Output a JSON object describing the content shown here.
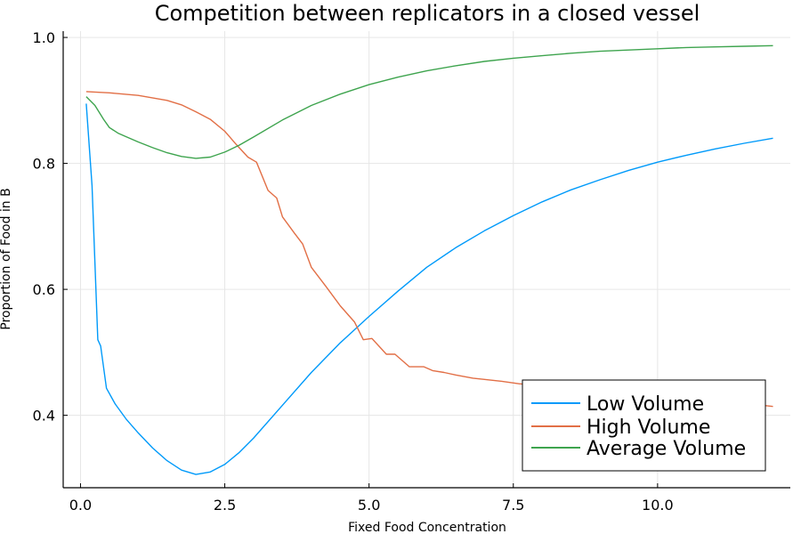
{
  "chart_data": {
    "type": "line",
    "title": "Competition between replicators in a closed vessel",
    "xlabel": "Fixed Food Concentration",
    "ylabel": "Proportion of Food in B",
    "xlim": [
      -0.3,
      12.3
    ],
    "ylim": [
      0.285,
      1.01
    ],
    "xticks": [
      0,
      2.5,
      5,
      7.5,
      10
    ],
    "xtick_labels": [
      "0.0",
      "2.5",
      "5.0",
      "7.5",
      "10.0"
    ],
    "yticks": [
      0.4,
      0.6,
      0.8,
      1.0
    ],
    "ytick_labels": [
      "0.4",
      "0.6",
      "0.8",
      "1.0"
    ],
    "grid": true,
    "legend": "bottom-right",
    "series": [
      {
        "name": "Low Volume",
        "color": "#009AFA",
        "x": [
          0.1,
          0.2,
          0.3,
          0.35,
          0.45,
          0.6,
          0.8,
          1.0,
          1.25,
          1.5,
          1.75,
          2.0,
          2.25,
          2.5,
          2.75,
          3.0,
          3.5,
          4.0,
          4.5,
          5.0,
          5.5,
          6.0,
          6.5,
          7.0,
          7.5,
          8.0,
          8.5,
          9.0,
          9.5,
          10.0,
          10.5,
          11.0,
          11.5,
          12.0
        ],
        "y": [
          0.895,
          0.765,
          0.52,
          0.51,
          0.443,
          0.418,
          0.393,
          0.372,
          0.348,
          0.328,
          0.313,
          0.306,
          0.31,
          0.322,
          0.341,
          0.364,
          0.416,
          0.468,
          0.515,
          0.557,
          0.597,
          0.635,
          0.666,
          0.693,
          0.717,
          0.739,
          0.758,
          0.774,
          0.789,
          0.802,
          0.813,
          0.823,
          0.832,
          0.84
        ]
      },
      {
        "name": "High Volume",
        "color": "#E26F46",
        "x": [
          0.1,
          0.5,
          1.0,
          1.5,
          1.75,
          2.0,
          2.25,
          2.5,
          2.7,
          2.9,
          3.05,
          3.25,
          3.4,
          3.5,
          3.7,
          3.85,
          4.0,
          4.25,
          4.5,
          4.75,
          4.9,
          5.05,
          5.3,
          5.45,
          5.7,
          5.95,
          6.1,
          6.3,
          6.5,
          6.8,
          7.0,
          7.3,
          7.6,
          8.0,
          8.5,
          9.0,
          9.5,
          10.0,
          10.5,
          11.0,
          11.5,
          12.0
        ],
        "y": [
          0.914,
          0.912,
          0.908,
          0.9,
          0.893,
          0.882,
          0.87,
          0.851,
          0.83,
          0.81,
          0.802,
          0.757,
          0.745,
          0.715,
          0.69,
          0.672,
          0.635,
          0.605,
          0.574,
          0.548,
          0.52,
          0.522,
          0.497,
          0.497,
          0.477,
          0.477,
          0.471,
          0.468,
          0.464,
          0.459,
          0.457,
          0.454,
          0.45,
          0.447,
          0.443,
          0.439,
          0.435,
          0.431,
          0.427,
          0.423,
          0.419,
          0.414
        ]
      },
      {
        "name": "Average Volume",
        "color": "#3EA44E",
        "x": [
          0.1,
          0.25,
          0.4,
          0.5,
          0.65,
          0.8,
          1.0,
          1.25,
          1.5,
          1.75,
          2.0,
          2.25,
          2.5,
          2.75,
          3.0,
          3.5,
          4.0,
          4.5,
          5.0,
          5.5,
          6.0,
          6.5,
          7.0,
          7.5,
          8.0,
          8.5,
          9.0,
          9.5,
          10.0,
          10.5,
          11.0,
          11.5,
          12.0
        ],
        "y": [
          0.906,
          0.892,
          0.87,
          0.857,
          0.848,
          0.842,
          0.834,
          0.825,
          0.817,
          0.811,
          0.808,
          0.81,
          0.818,
          0.829,
          0.842,
          0.869,
          0.892,
          0.91,
          0.925,
          0.937,
          0.947,
          0.955,
          0.962,
          0.967,
          0.971,
          0.975,
          0.978,
          0.98,
          0.982,
          0.984,
          0.985,
          0.986,
          0.987
        ]
      }
    ]
  }
}
